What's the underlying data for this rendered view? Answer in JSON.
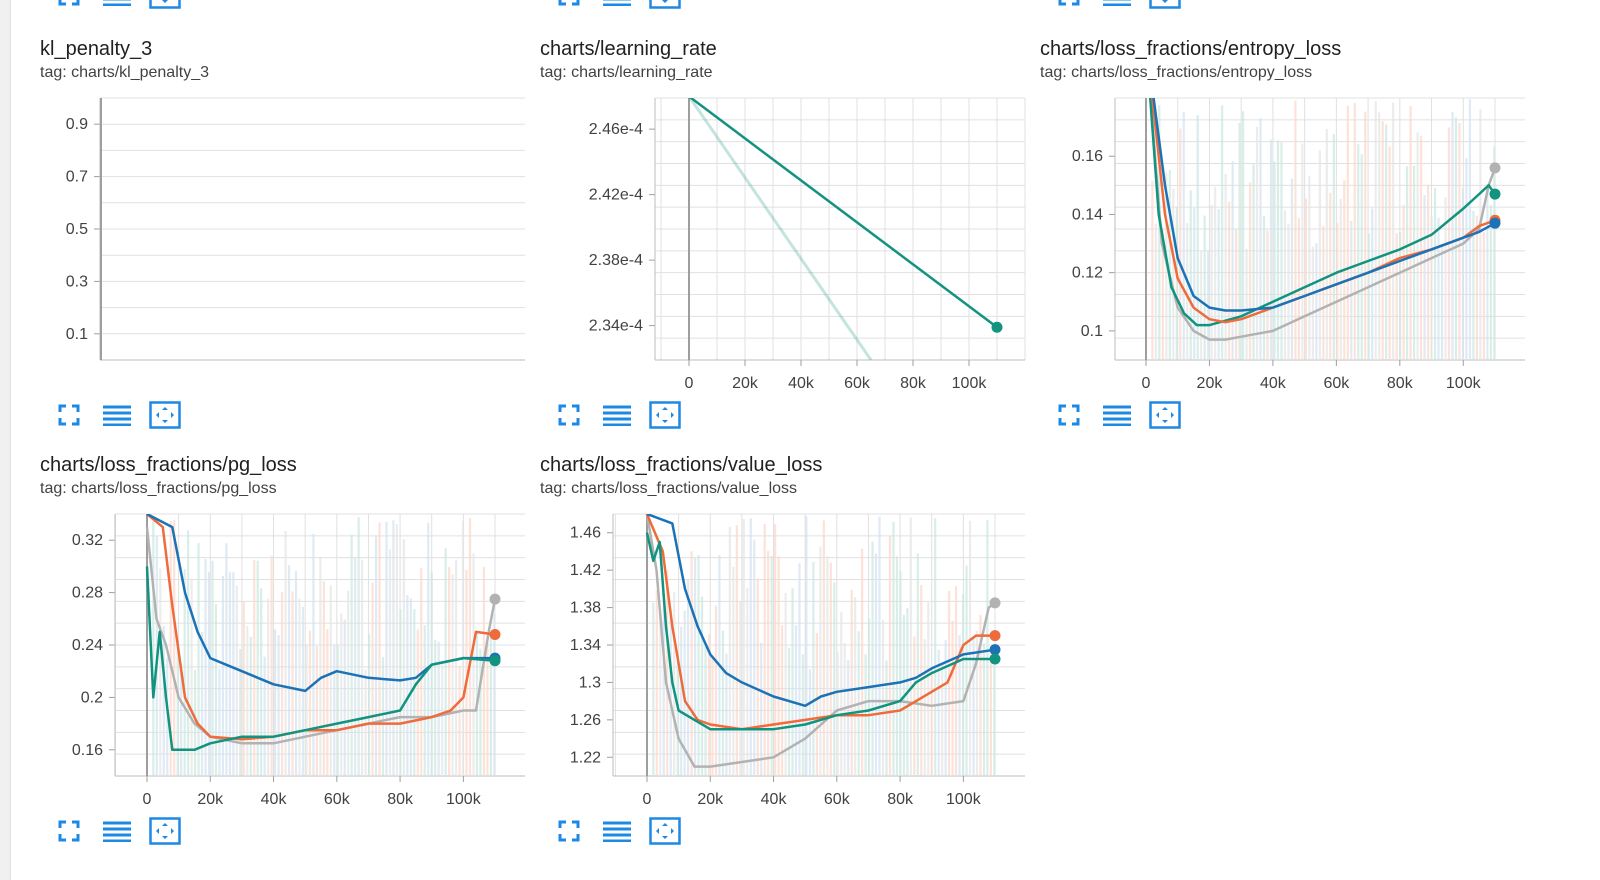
{
  "colors": {
    "teal": "#12937f",
    "orange": "#ee6b3c",
    "blue": "#1b72b6",
    "gray": "#b2b2b2",
    "grid": "#dddddd",
    "axis": "#9e9e9e",
    "button": "#1e88e5"
  },
  "toolbar": {
    "fullscreen_icon": "fullscreen-icon",
    "data_table_icon": "list-icon",
    "fit_domain_icon": "fit-to-data-icon"
  },
  "cards": [
    {
      "title": "kl_penalty_3",
      "tag": "tag: charts/kl_penalty_3"
    },
    {
      "title": "charts/learning_rate",
      "tag": "tag: charts/learning_rate"
    },
    {
      "title": "charts/loss_fractions/entropy_loss",
      "tag": "tag: charts/loss_fractions/entropy_loss"
    },
    {
      "title": "charts/loss_fractions/pg_loss",
      "tag": "tag: charts/loss_fractions/pg_loss"
    },
    {
      "title": "charts/loss_fractions/value_loss",
      "tag": "tag: charts/loss_fractions/value_loss"
    }
  ],
  "chart_data": [
    {
      "type": "line",
      "title": "kl_penalty_3",
      "ylim": [
        0,
        1
      ],
      "yticks": [
        "0.9",
        "0.7",
        "0.5",
        "0.3",
        "0.1"
      ],
      "ytick_values": [
        0.9,
        0.7,
        0.5,
        0.3,
        0.1
      ],
      "xticks": [],
      "grid": true,
      "series": []
    },
    {
      "type": "line",
      "title": "charts/learning_rate",
      "xlim": [
        0,
        120000
      ],
      "ylim": [
        0.0002319,
        0.0002479
      ],
      "xticks": [
        "0",
        "20k",
        "40k",
        "60k",
        "80k",
        "100k"
      ],
      "xtick_values": [
        0,
        20000,
        40000,
        60000,
        80000,
        100000
      ],
      "yticks": [
        "2.46e-4",
        "2.42e-4",
        "2.38e-4",
        "2.34e-4"
      ],
      "ytick_values": [
        0.000246,
        0.000242,
        0.000238,
        0.000234
      ],
      "grid": true,
      "series": [
        {
          "color": "#12937f",
          "faint": true,
          "x": [
            0,
            65000
          ],
          "y": [
            0.000248,
            0.0002319
          ]
        },
        {
          "color": "#12937f",
          "faint": false,
          "x": [
            0,
            110000
          ],
          "y": [
            0.000248,
            0.0002339
          ],
          "end_dot": true
        }
      ]
    },
    {
      "type": "line",
      "title": "charts/loss_fractions/entropy_loss",
      "xlim": [
        -10000,
        120000
      ],
      "ylim": [
        0.09,
        0.18
      ],
      "xticks": [
        "0",
        "20k",
        "40k",
        "60k",
        "80k",
        "100k"
      ],
      "xtick_values": [
        0,
        20000,
        40000,
        60000,
        80000,
        100000
      ],
      "yticks": [
        "0.16",
        "0.14",
        "0.12",
        "0.1"
      ],
      "ytick_values": [
        0.16,
        0.14,
        0.12,
        0.1
      ],
      "grid": true,
      "series": [
        {
          "color": "#b2b2b2",
          "x": [
            0,
            5000,
            10000,
            15000,
            20000,
            25000,
            30000,
            40000,
            50000,
            60000,
            70000,
            80000,
            90000,
            100000,
            105000,
            108000,
            110000
          ],
          "y": [
            0.2,
            0.13,
            0.108,
            0.1,
            0.097,
            0.097,
            0.098,
            0.1,
            0.105,
            0.11,
            0.115,
            0.12,
            0.125,
            0.13,
            0.135,
            0.15,
            0.156
          ],
          "end_dot": true
        },
        {
          "color": "#12937f",
          "x": [
            0,
            4000,
            8000,
            12000,
            16000,
            20000,
            30000,
            40000,
            50000,
            60000,
            70000,
            80000,
            90000,
            100000,
            104000,
            108000,
            110000
          ],
          "y": [
            0.2,
            0.14,
            0.115,
            0.106,
            0.102,
            0.102,
            0.105,
            0.11,
            0.115,
            0.12,
            0.124,
            0.128,
            0.133,
            0.142,
            0.146,
            0.15,
            0.147
          ],
          "end_dot": true
        },
        {
          "color": "#ee6b3c",
          "x": [
            0,
            6000,
            10000,
            15000,
            20000,
            25000,
            30000,
            40000,
            50000,
            60000,
            70000,
            80000,
            90000,
            100000,
            105000,
            110000
          ],
          "y": [
            0.2,
            0.14,
            0.118,
            0.108,
            0.104,
            0.103,
            0.104,
            0.108,
            0.112,
            0.116,
            0.12,
            0.125,
            0.128,
            0.132,
            0.136,
            0.138
          ],
          "end_dot": true
        },
        {
          "color": "#1b72b6",
          "x": [
            0,
            6000,
            10000,
            15000,
            20000,
            25000,
            30000,
            40000,
            50000,
            60000,
            70000,
            80000,
            90000,
            100000,
            105000,
            110000
          ],
          "y": [
            0.2,
            0.15,
            0.125,
            0.112,
            0.108,
            0.107,
            0.107,
            0.108,
            0.112,
            0.116,
            0.12,
            0.124,
            0.128,
            0.132,
            0.134,
            0.137
          ],
          "end_dot": true
        }
      ]
    },
    {
      "type": "line",
      "title": "charts/loss_fractions/pg_loss",
      "xlim": [
        -10000,
        120000
      ],
      "ylim": [
        0.14,
        0.34
      ],
      "xticks": [
        "0",
        "20k",
        "40k",
        "60k",
        "80k",
        "100k"
      ],
      "xtick_values": [
        0,
        20000,
        40000,
        60000,
        80000,
        100000
      ],
      "yticks": [
        "0.32",
        "0.28",
        "0.24",
        "0.2",
        "0.16"
      ],
      "ytick_values": [
        0.32,
        0.28,
        0.24,
        0.2,
        0.16
      ],
      "grid": true,
      "series": [
        {
          "color": "#b2b2b2",
          "x": [
            0,
            3000,
            6000,
            10000,
            15000,
            20000,
            30000,
            40000,
            50000,
            60000,
            70000,
            80000,
            90000,
            100000,
            104000,
            108000,
            110000
          ],
          "y": [
            0.33,
            0.26,
            0.24,
            0.2,
            0.18,
            0.17,
            0.165,
            0.165,
            0.17,
            0.175,
            0.18,
            0.185,
            0.185,
            0.19,
            0.19,
            0.25,
            0.275
          ],
          "end_dot": true
        },
        {
          "color": "#ee6b3c",
          "x": [
            0,
            5000,
            8000,
            12000,
            16000,
            20000,
            30000,
            40000,
            50000,
            60000,
            70000,
            80000,
            90000,
            96000,
            100000,
            104000,
            110000
          ],
          "y": [
            0.34,
            0.33,
            0.27,
            0.2,
            0.18,
            0.17,
            0.168,
            0.17,
            0.175,
            0.175,
            0.18,
            0.18,
            0.185,
            0.19,
            0.2,
            0.25,
            0.248
          ],
          "end_dot": true
        },
        {
          "color": "#1b72b6",
          "x": [
            0,
            8000,
            12000,
            16000,
            20000,
            25000,
            30000,
            40000,
            50000,
            55000,
            60000,
            70000,
            80000,
            85000,
            90000,
            100000,
            110000
          ],
          "y": [
            0.34,
            0.33,
            0.28,
            0.25,
            0.23,
            0.225,
            0.22,
            0.21,
            0.205,
            0.215,
            0.22,
            0.215,
            0.213,
            0.215,
            0.225,
            0.23,
            0.23
          ],
          "end_dot": true
        },
        {
          "color": "#12937f",
          "x": [
            0,
            2000,
            4000,
            6000,
            8000,
            10000,
            15000,
            20000,
            30000,
            40000,
            50000,
            60000,
            70000,
            80000,
            85000,
            90000,
            100000,
            110000
          ],
          "y": [
            0.3,
            0.2,
            0.25,
            0.2,
            0.16,
            0.16,
            0.16,
            0.165,
            0.17,
            0.17,
            0.175,
            0.18,
            0.185,
            0.19,
            0.21,
            0.225,
            0.23,
            0.228
          ],
          "end_dot": true
        }
      ]
    },
    {
      "type": "line",
      "title": "charts/loss_fractions/value_loss",
      "xlim": [
        -10000,
        120000
      ],
      "ylim": [
        1.2,
        1.48
      ],
      "xticks": [
        "0",
        "20k",
        "40k",
        "60k",
        "80k",
        "100k"
      ],
      "xtick_values": [
        0,
        20000,
        40000,
        60000,
        80000,
        100000
      ],
      "yticks": [
        "1.46",
        "1.42",
        "1.38",
        "1.34",
        "1.3",
        "1.26",
        "1.22"
      ],
      "ytick_values": [
        1.46,
        1.42,
        1.38,
        1.34,
        1.3,
        1.26,
        1.22
      ],
      "grid": true,
      "series": [
        {
          "color": "#b2b2b2",
          "x": [
            0,
            3000,
            6000,
            10000,
            15000,
            20000,
            30000,
            40000,
            50000,
            60000,
            70000,
            80000,
            90000,
            100000,
            104000,
            108000,
            110000
          ],
          "y": [
            1.48,
            1.42,
            1.3,
            1.24,
            1.21,
            1.21,
            1.215,
            1.22,
            1.24,
            1.27,
            1.28,
            1.28,
            1.275,
            1.28,
            1.32,
            1.38,
            1.385
          ],
          "end_dot": true
        },
        {
          "color": "#ee6b3c",
          "x": [
            0,
            5000,
            8000,
            12000,
            16000,
            20000,
            30000,
            40000,
            50000,
            60000,
            70000,
            80000,
            90000,
            95000,
            100000,
            104000,
            110000
          ],
          "y": [
            1.48,
            1.44,
            1.36,
            1.28,
            1.26,
            1.255,
            1.25,
            1.255,
            1.26,
            1.265,
            1.265,
            1.27,
            1.29,
            1.3,
            1.34,
            1.35,
            1.35
          ],
          "end_dot": true
        },
        {
          "color": "#1b72b6",
          "x": [
            0,
            8000,
            12000,
            16000,
            20000,
            25000,
            30000,
            40000,
            50000,
            55000,
            60000,
            70000,
            80000,
            85000,
            90000,
            100000,
            110000
          ],
          "y": [
            1.48,
            1.47,
            1.4,
            1.36,
            1.33,
            1.31,
            1.3,
            1.285,
            1.275,
            1.285,
            1.29,
            1.295,
            1.3,
            1.305,
            1.315,
            1.33,
            1.335
          ],
          "end_dot": true
        },
        {
          "color": "#12937f",
          "x": [
            0,
            2000,
            4000,
            6000,
            8000,
            10000,
            15000,
            20000,
            30000,
            40000,
            50000,
            60000,
            70000,
            80000,
            85000,
            90000,
            100000,
            110000
          ],
          "y": [
            1.46,
            1.43,
            1.45,
            1.36,
            1.3,
            1.27,
            1.26,
            1.25,
            1.25,
            1.25,
            1.255,
            1.265,
            1.27,
            1.28,
            1.3,
            1.31,
            1.325,
            1.325
          ],
          "end_dot": true
        }
      ]
    }
  ]
}
